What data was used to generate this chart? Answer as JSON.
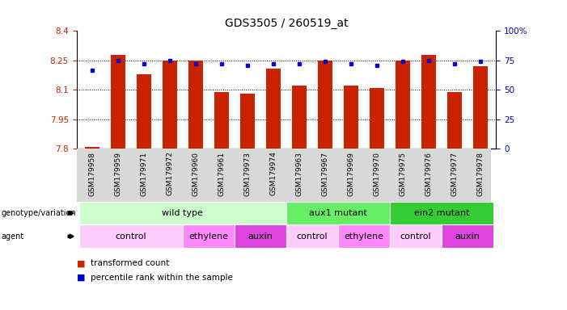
{
  "title": "GDS3505 / 260519_at",
  "samples": [
    "GSM179958",
    "GSM179959",
    "GSM179971",
    "GSM179972",
    "GSM179960",
    "GSM179961",
    "GSM179973",
    "GSM179974",
    "GSM179963",
    "GSM179967",
    "GSM179969",
    "GSM179970",
    "GSM179975",
    "GSM179976",
    "GSM179977",
    "GSM179978"
  ],
  "transformed_count": [
    7.81,
    8.28,
    8.18,
    8.25,
    8.25,
    8.09,
    8.08,
    8.21,
    8.12,
    8.25,
    8.12,
    8.11,
    8.25,
    8.28,
    8.09,
    8.22
  ],
  "percentile_rank": [
    67,
    75,
    72,
    75,
    72,
    72,
    71,
    72,
    72,
    74,
    72,
    71,
    74,
    75,
    72,
    74
  ],
  "y_min": 7.8,
  "y_max": 8.4,
  "y_ticks_left": [
    7.8,
    7.95,
    8.1,
    8.25,
    8.4
  ],
  "y_ticks_right": [
    0,
    25,
    50,
    75,
    100
  ],
  "bar_color": "#cc2200",
  "dot_color": "#0000cc",
  "genotype_groups": [
    {
      "label": "wild type",
      "start": 0,
      "end": 8,
      "color": "#ccffcc"
    },
    {
      "label": "aux1 mutant",
      "start": 8,
      "end": 12,
      "color": "#66ee66"
    },
    {
      "label": "ein2 mutant",
      "start": 12,
      "end": 16,
      "color": "#33cc33"
    }
  ],
  "agent_groups": [
    {
      "label": "control",
      "start": 0,
      "end": 4,
      "color": "#ffccff"
    },
    {
      "label": "ethylene",
      "start": 4,
      "end": 6,
      "color": "#ff88ff"
    },
    {
      "label": "auxin",
      "start": 6,
      "end": 8,
      "color": "#dd44dd"
    },
    {
      "label": "control",
      "start": 8,
      "end": 10,
      "color": "#ffccff"
    },
    {
      "label": "ethylene",
      "start": 10,
      "end": 12,
      "color": "#ff88ff"
    },
    {
      "label": "control",
      "start": 12,
      "end": 14,
      "color": "#ffccff"
    },
    {
      "label": "auxin",
      "start": 14,
      "end": 16,
      "color": "#dd44dd"
    }
  ],
  "title_fontsize": 10,
  "tick_fontsize": 7.5,
  "sample_fontsize": 6.5,
  "annotation_fontsize": 8,
  "legend_fontsize": 7.5
}
